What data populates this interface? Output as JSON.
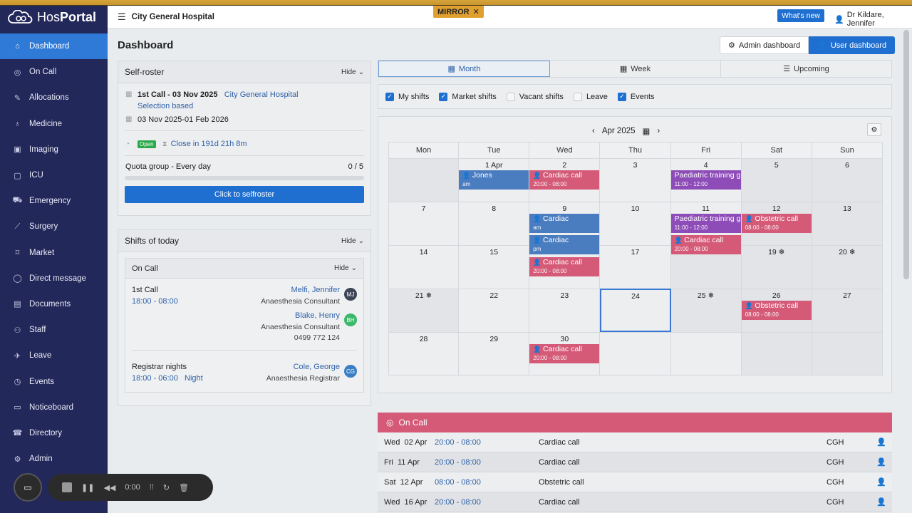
{
  "app": {
    "logo_a": "Hos",
    "logo_b": "Portal",
    "hospital": "City General Hospital",
    "mirror": "MIRROR",
    "whats_new": "What's new",
    "user": "Dr Kildare, Jennifer"
  },
  "sidebar": {
    "items": [
      {
        "label": "Dashboard",
        "icon": "home-icon"
      },
      {
        "label": "On Call",
        "icon": "oncall-icon"
      },
      {
        "label": "Allocations",
        "icon": "pen-icon"
      },
      {
        "label": "Medicine",
        "icon": "stethoscope-icon"
      },
      {
        "label": "Imaging",
        "icon": "image-icon"
      },
      {
        "label": "ICU",
        "icon": "monitor-icon"
      },
      {
        "label": "Emergency",
        "icon": "ambulance-icon"
      },
      {
        "label": "Surgery",
        "icon": "scalpel-icon"
      },
      {
        "label": "Market",
        "icon": "tag-icon"
      },
      {
        "label": "Direct message",
        "icon": "chat-icon"
      },
      {
        "label": "Documents",
        "icon": "document-icon"
      },
      {
        "label": "Staff",
        "icon": "staff-icon"
      },
      {
        "label": "Leave",
        "icon": "plane-icon"
      },
      {
        "label": "Events",
        "icon": "clock-icon"
      },
      {
        "label": "Noticeboard",
        "icon": "noticeboard-icon"
      },
      {
        "label": "Directory",
        "icon": "phone-icon"
      },
      {
        "label": "Admin",
        "icon": "gear-icon"
      }
    ]
  },
  "page": {
    "title": "Dashboard",
    "admin_btn": "Admin dashboard",
    "user_btn": "User dashboard"
  },
  "selfroster": {
    "title": "Self-roster",
    "hide": "Hide",
    "shift": "1st Call - 03 Nov 2025",
    "hospital": "City General Hospital",
    "selection": "Selection based",
    "range": "03 Nov 2025-01 Feb 2026",
    "status": "Open",
    "close": "Close in 191d 21h 8m",
    "quota_label": "Quota group - Every day",
    "quota_value": "0 / 5",
    "quota_fraction": 0,
    "button": "Click to selfroster"
  },
  "today": {
    "title": "Shifts of today",
    "hide": "Hide",
    "oncall_title": "On Call",
    "oncall_hide": "Hide",
    "first_label": "1st Call",
    "first_time": "18:00 - 08:00",
    "p1_name": "Melfi, Jennifer",
    "p1_role": "Anaesthesia Consultant",
    "p1_initials": "MJ",
    "p2_name": "Blake, Henry",
    "p2_role": "Anaesthesia Consultant",
    "p2_phone": "0499 772 124",
    "p2_initials": "BH",
    "reg_label": "Registrar nights",
    "reg_time": "18:00 - 06:00",
    "reg_tag": "Night",
    "p3_name": "Cole, George",
    "p3_role": "Anaesthesia Registrar",
    "p3_initials": "CG"
  },
  "tabs": {
    "month": "Month",
    "week": "Week",
    "upcoming": "Upcoming"
  },
  "filters": [
    {
      "label": "My shifts",
      "checked": true
    },
    {
      "label": "Market shifts",
      "checked": true
    },
    {
      "label": "Vacant shifts",
      "checked": false
    },
    {
      "label": "Leave",
      "checked": false
    },
    {
      "label": "Events",
      "checked": true
    }
  ],
  "calendar": {
    "month": "Apr 2025",
    "dow": [
      "Mon",
      "Tue",
      "Wed",
      "Thu",
      "Fri",
      "Sat",
      "Sun"
    ],
    "weeks": [
      [
        "",
        "1 Apr",
        "2",
        "3",
        "4",
        "5",
        "6"
      ],
      [
        "7",
        "8",
        "9",
        "10",
        "11",
        "12",
        "13"
      ],
      [
        "14",
        "15",
        "16",
        "17",
        "18 ❄",
        "19 ❄",
        "20 ❄"
      ],
      [
        "21 ❄",
        "22",
        "23",
        "24",
        "25 ❄",
        "26",
        "27"
      ],
      [
        "28",
        "29",
        "30",
        "",
        "",
        "",
        ""
      ]
    ],
    "events": [
      {
        "week": 0,
        "day": 1,
        "slot": 0,
        "color": "blue",
        "title": "Jones",
        "sub": "am",
        "person": true
      },
      {
        "week": 0,
        "day": 2,
        "slot": 0,
        "color": "pink",
        "title": "Cardiac call",
        "sub": "20:00 - 08:00",
        "person": true
      },
      {
        "week": 0,
        "day": 4,
        "slot": 0,
        "color": "purple",
        "title": "Paediatric training g",
        "sub": "11:00 - 12:00",
        "person": false
      },
      {
        "week": 1,
        "day": 2,
        "slot": 0,
        "color": "blue",
        "title": "Cardiac",
        "sub": "am",
        "person": true
      },
      {
        "week": 1,
        "day": 2,
        "slot": 1,
        "color": "blue",
        "title": "Cardiac",
        "sub": "pm",
        "person": true
      },
      {
        "week": 1,
        "day": 4,
        "slot": 0,
        "color": "purple",
        "title": "Paediatric training g",
        "sub": "11:00 - 12:00",
        "person": false
      },
      {
        "week": 1,
        "day": 4,
        "slot": 1,
        "color": "pink",
        "title": "Cardiac call",
        "sub": "20:00 - 08:00",
        "person": true
      },
      {
        "week": 1,
        "day": 5,
        "slot": 0,
        "color": "pink",
        "title": "Obstetric call",
        "sub": "08:00 - 08:00",
        "person": true
      },
      {
        "week": 2,
        "day": 2,
        "slot": 0,
        "color": "pink",
        "title": "Cardiac call",
        "sub": "20:00 - 08:00",
        "person": true
      },
      {
        "week": 3,
        "day": 5,
        "slot": 0,
        "color": "pink",
        "title": "Obstetric call",
        "sub": "08:00 - 08:00",
        "person": true
      },
      {
        "week": 4,
        "day": 2,
        "slot": 0,
        "color": "pink",
        "title": "Cardiac call",
        "sub": "20:00 - 08:00",
        "person": true
      }
    ]
  },
  "oncall": {
    "title": "On Call",
    "rows": [
      {
        "dow": "Wed",
        "date": "02 Apr",
        "time": "20:00 - 08:00",
        "name": "Cardiac call",
        "loc": "CGH"
      },
      {
        "dow": "Fri",
        "date": "11 Apr",
        "time": "20:00 - 08:00",
        "name": "Cardiac call",
        "loc": "CGH"
      },
      {
        "dow": "Sat",
        "date": "12 Apr",
        "time": "08:00 - 08:00",
        "name": "Obstetric call",
        "loc": "CGH"
      },
      {
        "dow": "Wed",
        "date": "16 Apr",
        "time": "20:00 - 08:00",
        "name": "Cardiac call",
        "loc": "CGH"
      }
    ]
  },
  "recorder": {
    "time": "0:00"
  }
}
